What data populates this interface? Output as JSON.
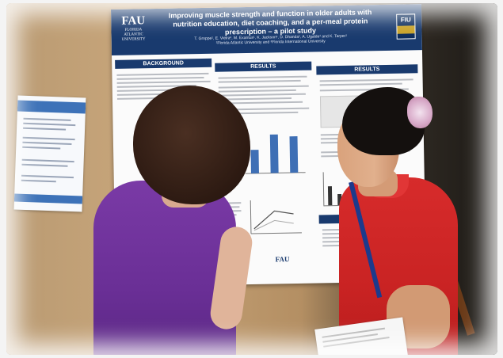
{
  "poster": {
    "title": "Improving muscle strength and function in older adults with nutrition education, diet coaching, and a per-meal protein prescription – a pilot study",
    "authors": "T. Groppe¹, E. Vieira², M. Exantus¹, K. Jackson¹, D. Dhanda¹, A. Ugalde¹ and K. Tarper¹",
    "affiliations": "¹Florida Atlantic University and ²Florida International University",
    "logo_left": "FAU",
    "logo_left_sub": "FLORIDA ATLANTIC UNIVERSITY",
    "logo_right": "FIU",
    "sections": {
      "background": "BACKGROUND",
      "results_1": "RESULTS",
      "results_2": "RESULTS",
      "conclusions": "CONCLUSIONS"
    },
    "footer_logo": "FAU"
  },
  "colors": {
    "poster_header": "#193a6e",
    "bars": "#3e6fb5",
    "wall": "#c7a57a",
    "shirt_left": "#7a3aa6",
    "shirt_right": "#d72b2b"
  },
  "chart_data": {
    "type": "bar",
    "categories": [
      "",
      "",
      ""
    ],
    "values": [
      22,
      36,
      34
    ],
    "title": "",
    "xlabel": "",
    "ylabel": ""
  }
}
